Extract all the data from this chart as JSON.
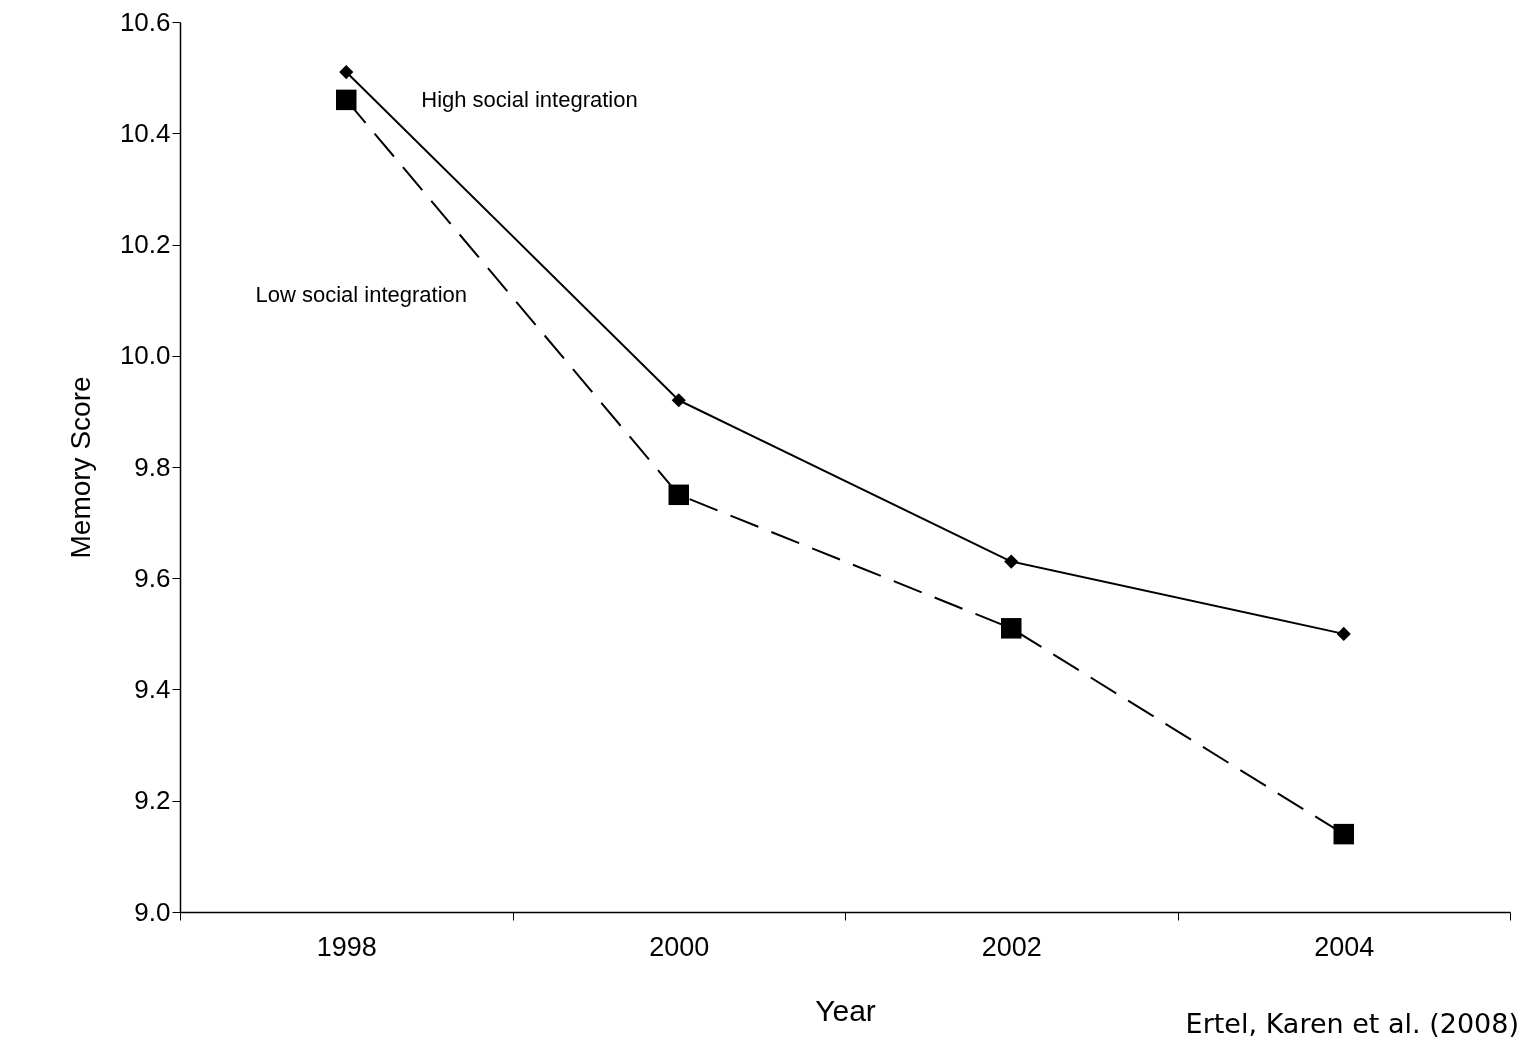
{
  "chart_data": {
    "type": "line",
    "xlabel": "Year",
    "ylabel": "Memory Score",
    "categories": [
      "1998",
      "2000",
      "2002",
      "2004"
    ],
    "series": [
      {
        "name": "High social integration",
        "color": "#000000",
        "values": [
          10.51,
          9.92,
          9.63,
          9.5
        ],
        "marker": "diamond",
        "line_style": "solid"
      },
      {
        "name": "Low social integration",
        "color": "#000000",
        "values": [
          10.46,
          9.75,
          9.51,
          9.14
        ],
        "marker": "square",
        "line_style": "dashed"
      }
    ],
    "ylim": [
      9,
      10.6
    ],
    "yticks": [
      {
        "value": 9,
        "label": "9.0"
      },
      9.2,
      9.4,
      9.6,
      9.8,
      {
        "value": 10,
        "label": "10.0"
      },
      10.2,
      10.4,
      10.6
    ],
    "grid": false,
    "legend": false,
    "annotations": [
      "Ertel, Karen et al. (2008)"
    ]
  }
}
